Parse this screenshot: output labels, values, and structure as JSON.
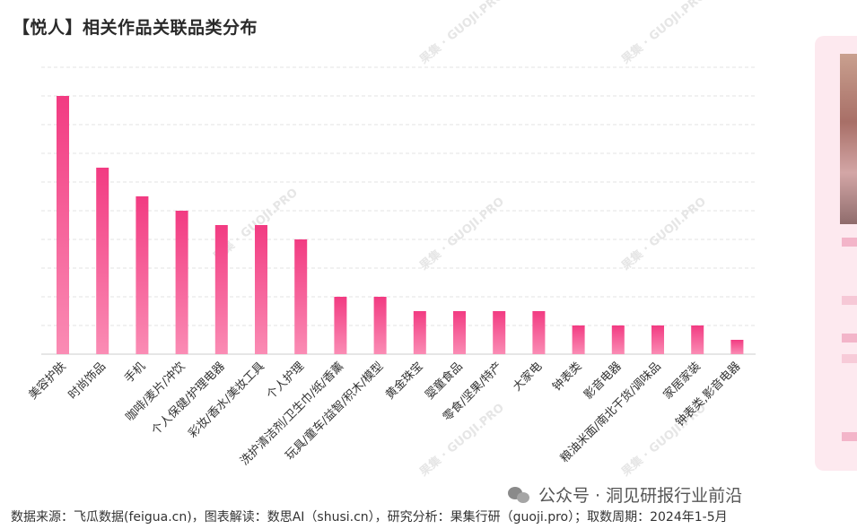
{
  "title": "【悦人】相关作品关联品类分布",
  "chart_data": {
    "type": "bar",
    "categories": [
      "美容护肤",
      "时尚饰品",
      "手机",
      "咖啡/麦片/冲饮",
      "个人保健/护理电器",
      "彩妆/香水/美妆工具",
      "个人护理",
      "洗护清洁剂/卫生巾/纸/香薰",
      "玩具/童车/益智/积木/模型",
      "黄金珠宝",
      "婴童食品",
      "零食/坚果/特产",
      "大家电",
      "钟表类",
      "影音电器",
      "粮油米面/南北干货/调味品",
      "家居家装",
      "钟表类,影音电器"
    ],
    "values": [
      18,
      13,
      11,
      10,
      9,
      9,
      8,
      4,
      4,
      3,
      3,
      3,
      3,
      2,
      2,
      2,
      2,
      1
    ],
    "ylim": [
      0,
      20
    ],
    "grid": true,
    "color": "#f0448a"
  },
  "watermark": {
    "brand": "果集",
    "url": "GUOJI.PRO"
  },
  "wechat": {
    "label": "公众号 · 洞见研报行业前沿"
  },
  "footer": {
    "text": "数据来源：飞瓜数据(feigua.cn)，图表解读：数思AI（shusi.cn），研究分析：果集行研（guoji.pro）；取数周期：2024年1-5月"
  }
}
